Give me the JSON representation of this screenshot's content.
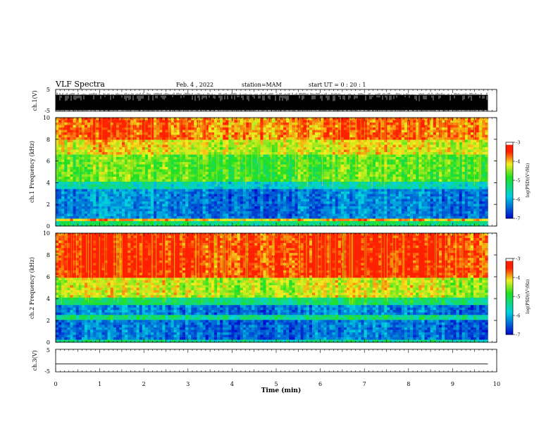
{
  "header": {
    "title": "VLF Spectra",
    "date": "Feb. 4 , 2022",
    "station": "station=MAM",
    "start_time": "start UT = 0 : 20 : 1"
  },
  "colors": {
    "low": "#0000cc",
    "cyan": "#00d0e0",
    "green": "#20e020",
    "yellow": "#f0f020",
    "high": "#ff2000",
    "max": "#ffffff"
  },
  "chart_data": [
    {
      "type": "line",
      "name": "ch1-waveform",
      "ylabel": "ch.1(V)",
      "ylim": [
        -5,
        5
      ],
      "yticks": [
        "5",
        "-5"
      ],
      "x": [
        0,
        1,
        2,
        3,
        4,
        5,
        6,
        7,
        8,
        9,
        9.8
      ],
      "band": {
        "upper": 2.5,
        "lower": -4.5,
        "spike_min": -5,
        "spike_max": 3.5
      }
    },
    {
      "type": "heatmap",
      "name": "ch1-spectrogram",
      "ylabel": "ch.1 Frequency (kHz)",
      "ylim": [
        0,
        10
      ],
      "yticks": [
        "0",
        "2",
        "4",
        "6",
        "8",
        "10"
      ],
      "xlim": [
        0,
        10
      ],
      "data_end": 9.8,
      "bands": [
        {
          "from": 0,
          "to": 0.4,
          "level": 0.45
        },
        {
          "from": 0.4,
          "to": 0.6,
          "level": 0.75
        },
        {
          "from": 0.6,
          "to": 3.3,
          "level": 0.18
        },
        {
          "from": 3.3,
          "to": 4.0,
          "level": 0.35
        },
        {
          "from": 4.0,
          "to": 6.5,
          "level": 0.58
        },
        {
          "from": 6.5,
          "to": 8.0,
          "level": 0.7
        },
        {
          "from": 8.0,
          "to": 10,
          "level": 0.82
        }
      ],
      "colorbar": {
        "label": "log(PSD)(V²/Hz)",
        "range": [
          -7,
          -3
        ],
        "ticks": [
          "-3",
          "-4",
          "-5",
          "-6",
          "-7"
        ]
      }
    },
    {
      "type": "heatmap",
      "name": "ch2-spectrogram",
      "ylabel": "ch.2 Frequency (kHz)",
      "ylim": [
        0,
        10
      ],
      "yticks": [
        "0",
        "2",
        "4",
        "6",
        "8",
        "10"
      ],
      "xlim": [
        0,
        10
      ],
      "data_end": 9.8,
      "bands": [
        {
          "from": 0,
          "to": 0.3,
          "level": 0.4
        },
        {
          "from": 0.3,
          "to": 2.0,
          "level": 0.16
        },
        {
          "from": 2.0,
          "to": 2.4,
          "level": 0.42
        },
        {
          "from": 2.4,
          "to": 3.4,
          "level": 0.18
        },
        {
          "from": 3.4,
          "to": 4.2,
          "level": 0.45
        },
        {
          "from": 4.2,
          "to": 6.0,
          "level": 0.68
        },
        {
          "from": 6.0,
          "to": 10,
          "level": 0.88
        }
      ],
      "colorbar": {
        "label": "log(PSD)(V²/Hz)",
        "range": [
          -7,
          -3
        ],
        "ticks": [
          "-3",
          "-4",
          "-5",
          "-6",
          "-7"
        ]
      }
    },
    {
      "type": "line",
      "name": "ch3-waveform",
      "ylabel": "ch.3(V)",
      "ylim": [
        -5,
        5
      ],
      "yticks": [
        "5",
        "-5"
      ],
      "x": [
        0,
        9.8
      ],
      "y": [
        -1.5,
        -1.5
      ]
    }
  ],
  "xaxis": {
    "label": "Time (min)",
    "range": [
      0,
      10
    ],
    "ticks": [
      "0",
      "1",
      "2",
      "3",
      "4",
      "5",
      "6",
      "7",
      "8",
      "9",
      "10"
    ]
  }
}
